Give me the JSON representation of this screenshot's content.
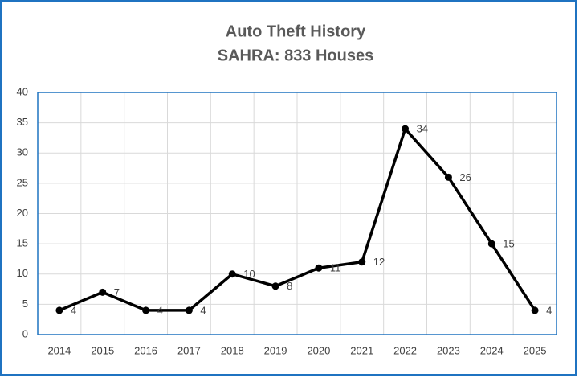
{
  "chart_data": {
    "type": "line",
    "title": "Auto Theft History",
    "subtitle": "SAHRA: 833 Houses",
    "categories": [
      "2014",
      "2015",
      "2016",
      "2017",
      "2018",
      "2019",
      "2020",
      "2021",
      "2022",
      "2023",
      "2024",
      "2025"
    ],
    "values": [
      4,
      7,
      4,
      4,
      10,
      8,
      11,
      12,
      34,
      26,
      15,
      4
    ],
    "color": "#000000",
    "ylim": [
      0,
      40
    ],
    "yticks": [
      0,
      5,
      10,
      15,
      20,
      25,
      30,
      35,
      40
    ],
    "grid": true
  }
}
